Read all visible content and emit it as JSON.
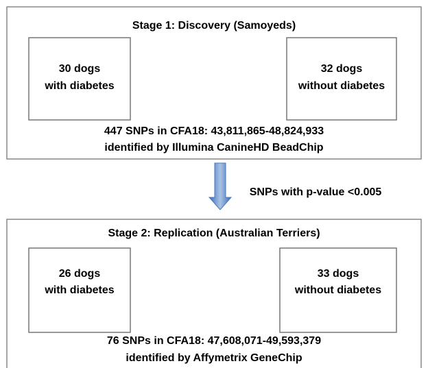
{
  "stages": [
    {
      "title": "Stage 1: Discovery (Samoyeds)",
      "groups": [
        [
          "30 dogs",
          "with diabetes"
        ],
        [
          "32 dogs",
          "without diabetes"
        ]
      ],
      "result": [
        "447 SNPs in CFA18: 43,811,865-48,824,933",
        "identified by Illumina CanineHD BeadChip"
      ]
    },
    {
      "title": "Stage 2: Replication (Australian Terriers)",
      "groups": [
        [
          "26 dogs",
          "with diabetes"
        ],
        [
          "33 dogs",
          "without diabetes"
        ]
      ],
      "result": [
        "76 SNPs in CFA18: 47,608,071-49,593,379",
        "identified by Affymetrix GeneChip"
      ]
    }
  ],
  "arrow_label": "SNPs with p-value <0.005"
}
